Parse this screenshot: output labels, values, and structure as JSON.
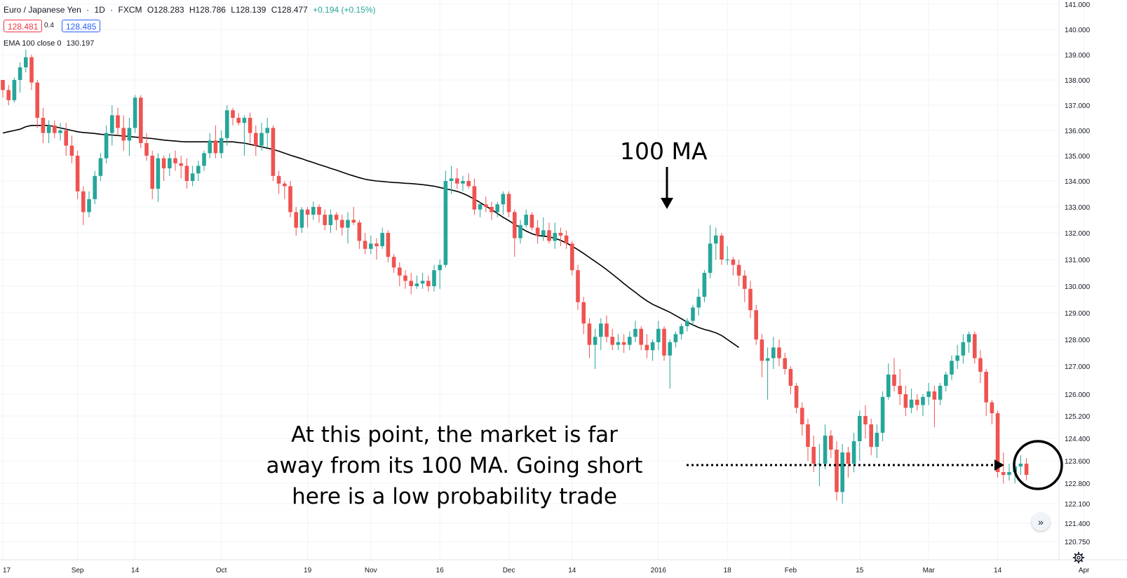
{
  "header": {
    "symbol": "Euro / Japanese Yen",
    "sep1": "·",
    "interval": "1D",
    "sep2": "·",
    "exchange": "FXCM",
    "open": "O128.283",
    "high": "H128.786",
    "low": "L128.139",
    "close": "C128.477",
    "change": "+0.194 (+0.15%)"
  },
  "prices": {
    "sell": "128.481",
    "spread": "0.4",
    "buy": "128.485"
  },
  "indicator": {
    "label": "EMA 100 close 0",
    "value": "130.197"
  },
  "annotations": {
    "ma_label": "100 MA",
    "note_lines": [
      "At this point, the market is far",
      "away from its 100 MA. Going short",
      "here is a low probability trade"
    ]
  },
  "controls": {
    "scroll_icon": "double-chevron-right-icon",
    "settings_icon": "gear-icon",
    "scroll_glyph": "»"
  },
  "colors": {
    "up": "#26a69a",
    "down": "#ef5350",
    "grid": "#f0f3fa",
    "ma": "#000000",
    "axis_text": "#131722"
  },
  "chart_data": {
    "type": "candlestick",
    "y_axis": {
      "ticks": [
        "141.000",
        "140.000",
        "139.000",
        "138.000",
        "137.000",
        "136.000",
        "135.000",
        "134.000",
        "133.000",
        "132.000",
        "131.000",
        "130.000",
        "129.000",
        "128.000",
        "127.000",
        "126.000",
        "125.200",
        "124.400",
        "123.600",
        "122.800",
        "122.100",
        "121.400",
        "120.750"
      ],
      "tick_values": [
        141.0,
        140.0,
        139.0,
        138.0,
        137.0,
        136.0,
        135.0,
        134.0,
        133.0,
        132.0,
        131.0,
        130.0,
        129.0,
        128.0,
        127.0,
        126.0,
        125.2,
        124.4,
        123.6,
        122.8,
        122.1,
        121.4,
        120.75
      ]
    },
    "x_axis": {
      "labels": [
        "17",
        "Sep",
        "14",
        "Oct",
        "19",
        "Nov",
        "16",
        "Dec",
        "14",
        "2016",
        "18",
        "Feb",
        "15",
        "Mar",
        "14",
        "Apr"
      ],
      "label_bar_index": [
        0,
        13,
        23,
        38,
        53,
        64,
        76,
        88,
        99,
        114,
        126,
        137,
        149,
        161,
        173,
        188
      ]
    },
    "bars": [
      [
        138.0,
        138.0,
        137.3,
        137.6
      ],
      [
        137.6,
        137.8,
        137.0,
        137.2
      ],
      [
        137.2,
        138.1,
        137.1,
        138.0
      ],
      [
        138.0,
        138.7,
        137.5,
        138.5
      ],
      [
        138.5,
        139.2,
        138.3,
        138.9
      ],
      [
        138.9,
        139.0,
        137.6,
        137.9
      ],
      [
        137.9,
        138.0,
        136.1,
        136.5
      ],
      [
        136.5,
        136.9,
        135.5,
        135.9
      ],
      [
        135.9,
        136.4,
        135.5,
        136.2
      ],
      [
        136.2,
        136.4,
        135.7,
        135.9
      ],
      [
        135.9,
        136.3,
        135.6,
        136.0
      ],
      [
        136.0,
        136.3,
        135.0,
        135.4
      ],
      [
        135.4,
        135.8,
        134.7,
        135.0
      ],
      [
        135.0,
        135.2,
        133.3,
        133.6
      ],
      [
        133.6,
        133.8,
        132.3,
        132.8
      ],
      [
        132.8,
        133.6,
        132.6,
        133.3
      ],
      [
        133.3,
        134.4,
        133.1,
        134.2
      ],
      [
        134.2,
        135.1,
        134.0,
        134.9
      ],
      [
        134.9,
        136.2,
        134.7,
        135.9
      ],
      [
        135.9,
        137.0,
        135.4,
        136.6
      ],
      [
        136.6,
        136.9,
        135.8,
        136.1
      ],
      [
        136.1,
        136.6,
        135.2,
        135.6
      ],
      [
        135.6,
        136.5,
        135.0,
        136.1
      ],
      [
        136.1,
        137.4,
        135.9,
        137.3
      ],
      [
        137.3,
        137.4,
        135.3,
        135.5
      ],
      [
        135.5,
        135.9,
        134.8,
        135.0
      ],
      [
        135.0,
        135.2,
        133.3,
        133.7
      ],
      [
        133.7,
        135.1,
        133.2,
        134.9
      ],
      [
        134.9,
        135.0,
        134.0,
        134.5
      ],
      [
        134.5,
        135.1,
        134.2,
        134.9
      ],
      [
        134.9,
        135.2,
        134.4,
        134.7
      ],
      [
        134.7,
        135.0,
        134.1,
        134.6
      ],
      [
        134.6,
        134.9,
        133.7,
        134.0
      ],
      [
        134.0,
        134.6,
        133.8,
        134.3
      ],
      [
        134.3,
        134.8,
        134.0,
        134.6
      ],
      [
        134.6,
        135.2,
        134.4,
        135.1
      ],
      [
        135.1,
        135.9,
        134.9,
        135.6
      ],
      [
        135.6,
        136.2,
        134.9,
        135.1
      ],
      [
        135.1,
        136.0,
        134.9,
        135.7
      ],
      [
        135.7,
        137.0,
        135.4,
        136.8
      ],
      [
        136.8,
        136.9,
        136.2,
        136.5
      ],
      [
        136.5,
        136.7,
        136.2,
        136.3
      ],
      [
        136.3,
        136.6,
        135.0,
        136.5
      ],
      [
        136.5,
        136.7,
        135.5,
        135.9
      ],
      [
        135.9,
        136.2,
        135.0,
        135.4
      ],
      [
        135.4,
        136.3,
        135.2,
        135.9
      ],
      [
        135.9,
        136.5,
        135.3,
        136.1
      ],
      [
        136.1,
        136.2,
        134.0,
        134.2
      ],
      [
        134.2,
        134.4,
        133.5,
        133.9
      ],
      [
        133.9,
        134.0,
        133.3,
        133.8
      ],
      [
        133.8,
        134.0,
        132.6,
        132.8
      ],
      [
        132.8,
        133.0,
        131.9,
        132.2
      ],
      [
        132.2,
        133.0,
        132.0,
        132.9
      ],
      [
        132.9,
        133.0,
        132.2,
        132.7
      ],
      [
        132.7,
        133.2,
        132.5,
        133.0
      ],
      [
        133.0,
        133.1,
        132.4,
        132.7
      ],
      [
        132.7,
        132.9,
        132.1,
        132.3
      ],
      [
        132.3,
        132.9,
        132.0,
        132.7
      ],
      [
        132.7,
        132.8,
        132.1,
        132.5
      ],
      [
        132.5,
        132.7,
        131.9,
        132.2
      ],
      [
        132.2,
        132.8,
        131.6,
        132.5
      ],
      [
        132.5,
        133.0,
        132.3,
        132.4
      ],
      [
        132.4,
        132.5,
        131.4,
        131.7
      ],
      [
        131.7,
        132.0,
        131.2,
        131.4
      ],
      [
        131.4,
        131.9,
        131.2,
        131.6
      ],
      [
        131.6,
        131.8,
        131.0,
        131.5
      ],
      [
        131.5,
        132.2,
        131.4,
        132.0
      ],
      [
        132.0,
        132.1,
        130.9,
        131.1
      ],
      [
        131.1,
        131.2,
        130.5,
        130.7
      ],
      [
        130.7,
        130.9,
        130.0,
        130.4
      ],
      [
        130.4,
        130.6,
        129.9,
        130.2
      ],
      [
        130.2,
        130.5,
        129.7,
        130.0
      ],
      [
        130.0,
        130.4,
        129.9,
        130.1
      ],
      [
        130.1,
        130.5,
        129.9,
        130.2
      ],
      [
        130.2,
        130.4,
        129.8,
        130.0
      ],
      [
        130.0,
        130.8,
        129.8,
        130.6
      ],
      [
        130.6,
        131.0,
        129.9,
        130.8
      ],
      [
        130.8,
        134.4,
        130.7,
        134.0
      ],
      [
        134.0,
        134.6,
        133.5,
        134.1
      ],
      [
        134.1,
        134.5,
        133.7,
        133.9
      ],
      [
        133.9,
        134.2,
        133.6,
        134.0
      ],
      [
        134.0,
        134.3,
        133.7,
        133.8
      ],
      [
        133.8,
        134.1,
        132.7,
        132.9
      ],
      [
        132.9,
        133.2,
        132.6,
        133.1
      ],
      [
        133.1,
        133.4,
        132.8,
        133.0
      ],
      [
        133.0,
        133.2,
        132.5,
        132.8
      ],
      [
        132.8,
        133.2,
        132.6,
        133.1
      ],
      [
        133.1,
        133.6,
        132.7,
        133.5
      ],
      [
        133.5,
        133.6,
        132.6,
        132.8
      ],
      [
        132.8,
        132.9,
        131.1,
        131.8
      ],
      [
        131.8,
        132.5,
        131.6,
        132.3
      ],
      [
        132.3,
        132.9,
        132.2,
        132.7
      ],
      [
        132.7,
        132.8,
        132.1,
        132.2
      ],
      [
        132.2,
        132.5,
        131.6,
        131.9
      ],
      [
        131.9,
        132.6,
        131.7,
        132.1
      ],
      [
        132.1,
        132.4,
        131.6,
        131.7
      ],
      [
        131.7,
        132.4,
        131.4,
        132.0
      ],
      [
        132.0,
        132.2,
        131.5,
        131.9
      ],
      [
        131.9,
        132.1,
        131.4,
        131.6
      ],
      [
        131.6,
        131.7,
        130.4,
        130.6
      ],
      [
        130.6,
        130.8,
        129.1,
        129.4
      ],
      [
        129.4,
        129.6,
        128.2,
        128.6
      ],
      [
        128.6,
        128.8,
        127.3,
        127.8
      ],
      [
        127.8,
        128.4,
        126.9,
        128.1
      ],
      [
        128.1,
        128.8,
        127.6,
        128.6
      ],
      [
        128.6,
        128.9,
        127.9,
        128.1
      ],
      [
        128.1,
        128.4,
        127.6,
        127.8
      ],
      [
        127.8,
        128.2,
        127.6,
        127.9
      ],
      [
        127.9,
        128.2,
        127.5,
        127.8
      ],
      [
        127.8,
        128.3,
        127.6,
        128.1
      ],
      [
        128.1,
        128.7,
        127.9,
        128.4
      ],
      [
        128.4,
        128.5,
        127.6,
        127.8
      ],
      [
        127.8,
        128.2,
        127.3,
        127.6
      ],
      [
        127.6,
        128.0,
        127.2,
        127.9
      ],
      [
        127.9,
        128.7,
        127.6,
        128.4
      ],
      [
        128.4,
        128.5,
        127.2,
        127.4
      ],
      [
        127.4,
        128.0,
        126.2,
        127.9
      ],
      [
        127.9,
        128.3,
        127.7,
        128.2
      ],
      [
        128.2,
        128.6,
        128.0,
        128.5
      ],
      [
        128.5,
        128.8,
        128.3,
        128.7
      ],
      [
        128.7,
        129.3,
        128.5,
        129.2
      ],
      [
        129.2,
        129.9,
        128.9,
        129.6
      ],
      [
        129.6,
        130.6,
        129.4,
        130.5
      ],
      [
        130.5,
        132.3,
        130.3,
        131.6
      ],
      [
        131.6,
        132.2,
        131.0,
        131.9
      ],
      [
        131.9,
        132.0,
        130.8,
        131.0
      ],
      [
        131.0,
        131.5,
        130.8,
        131.0
      ],
      [
        131.0,
        131.1,
        130.4,
        130.8
      ],
      [
        130.8,
        131.0,
        130.0,
        130.4
      ],
      [
        130.4,
        130.6,
        129.4,
        129.9
      ],
      [
        129.9,
        130.2,
        128.8,
        129.1
      ],
      [
        129.1,
        129.3,
        127.8,
        128.0
      ],
      [
        128.0,
        128.2,
        126.6,
        127.2
      ],
      [
        127.2,
        127.7,
        125.8,
        127.3
      ],
      [
        127.3,
        128.1,
        126.9,
        127.7
      ],
      [
        127.7,
        128.0,
        127.0,
        127.3
      ],
      [
        127.3,
        127.5,
        126.7,
        126.9
      ],
      [
        126.9,
        127.0,
        126.0,
        126.3
      ],
      [
        126.3,
        126.4,
        125.3,
        125.5
      ],
      [
        125.5,
        125.7,
        124.5,
        124.9
      ],
      [
        124.9,
        125.1,
        123.6,
        124.1
      ],
      [
        124.1,
        124.5,
        123.2,
        123.5
      ],
      [
        123.5,
        124.2,
        122.7,
        123.5
      ],
      [
        123.5,
        124.9,
        123.3,
        124.5
      ],
      [
        124.5,
        124.7,
        123.7,
        124.0
      ],
      [
        124.0,
        124.3,
        122.2,
        122.5
      ],
      [
        122.5,
        124.2,
        122.1,
        123.9
      ],
      [
        123.9,
        124.1,
        123.0,
        123.5
      ],
      [
        123.5,
        124.6,
        123.2,
        124.3
      ],
      [
        124.3,
        125.4,
        123.6,
        125.2
      ],
      [
        125.2,
        125.6,
        124.4,
        124.9
      ],
      [
        124.9,
        125.1,
        123.8,
        124.1
      ],
      [
        124.1,
        124.9,
        123.7,
        124.6
      ],
      [
        124.6,
        126.1,
        124.3,
        125.9
      ],
      [
        125.9,
        127.1,
        125.8,
        126.7
      ],
      [
        126.7,
        127.3,
        126.1,
        126.3
      ],
      [
        126.3,
        126.9,
        125.6,
        126.0
      ],
      [
        126.0,
        126.3,
        125.2,
        125.5
      ],
      [
        125.5,
        126.2,
        125.3,
        125.8
      ],
      [
        125.8,
        126.0,
        125.4,
        125.6
      ],
      [
        125.6,
        126.0,
        125.2,
        125.9
      ],
      [
        125.9,
        126.4,
        125.6,
        126.1
      ],
      [
        126.1,
        126.3,
        124.8,
        125.8
      ],
      [
        125.8,
        126.4,
        125.6,
        126.3
      ],
      [
        126.3,
        126.8,
        126.1,
        126.7
      ],
      [
        126.7,
        127.4,
        126.5,
        127.2
      ],
      [
        127.2,
        127.8,
        126.9,
        127.4
      ],
      [
        127.4,
        128.2,
        127.1,
        127.9
      ],
      [
        127.9,
        128.3,
        127.5,
        128.2
      ],
      [
        128.2,
        128.3,
        127.1,
        127.3
      ],
      [
        127.3,
        127.6,
        126.4,
        126.8
      ],
      [
        126.8,
        126.9,
        125.2,
        125.7
      ],
      [
        125.7,
        125.8,
        124.9,
        125.3
      ],
      [
        125.3,
        125.4,
        123.0,
        123.2
      ],
      [
        123.2,
        123.9,
        122.8,
        123.1
      ],
      [
        123.1,
        123.5,
        122.9,
        123.2
      ],
      [
        123.2,
        123.8,
        122.8,
        123.4
      ],
      [
        123.4,
        123.8,
        123.1,
        123.5
      ],
      [
        123.5,
        123.7,
        122.9,
        123.1
      ]
    ],
    "ema100": [
      135.9,
      135.95,
      136.0,
      136.05,
      136.15,
      136.2,
      136.2,
      136.2,
      136.2,
      136.15,
      136.1,
      136.05,
      136.0,
      135.95,
      135.92,
      135.9,
      135.88,
      135.85,
      135.83,
      135.82,
      135.8,
      135.78,
      135.76,
      135.74,
      135.72,
      135.7,
      135.68,
      135.65,
      135.62,
      135.6,
      135.58,
      135.56,
      135.55,
      135.55,
      135.55,
      135.55,
      135.55,
      135.55,
      135.55,
      135.55,
      135.55,
      135.52,
      135.5,
      135.45,
      135.4,
      135.35,
      135.3,
      135.25,
      135.18,
      135.1,
      135.02,
      134.95,
      134.88,
      134.8,
      134.73,
      134.65,
      134.58,
      134.5,
      134.43,
      134.35,
      134.27,
      134.2,
      134.13,
      134.07,
      134.03,
      134.0,
      133.98,
      133.96,
      133.94,
      133.93,
      133.91,
      133.9,
      133.88,
      133.86,
      133.83,
      133.8,
      133.75,
      133.7,
      133.65,
      133.6,
      133.52,
      133.42,
      133.3,
      133.17,
      133.03,
      132.9,
      132.75,
      132.6,
      132.47,
      132.33,
      132.2,
      132.07,
      131.97,
      131.9,
      131.88,
      131.85,
      131.8,
      131.72,
      131.62,
      131.5,
      131.37,
      131.23,
      131.08,
      130.93,
      130.78,
      130.62,
      130.45,
      130.28,
      130.1,
      129.93,
      129.77,
      129.6,
      129.45,
      129.32,
      129.22,
      129.12,
      129.02,
      128.9,
      128.78,
      128.65,
      128.55,
      128.45,
      128.38,
      128.32,
      128.25,
      128.15,
      128.0,
      127.85,
      127.7
    ]
  }
}
